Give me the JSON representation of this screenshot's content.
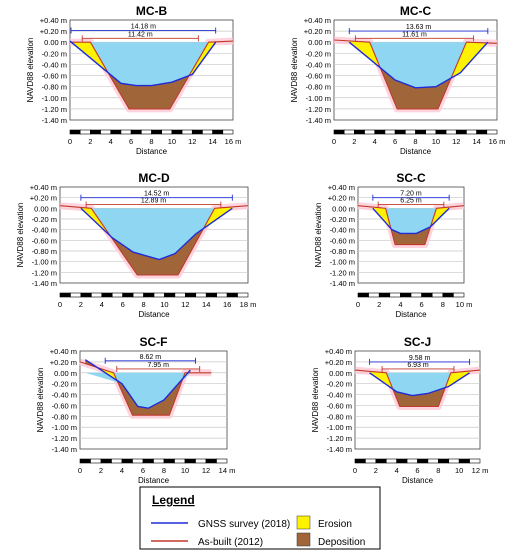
{
  "colors": {
    "gnss": "#1f2bd6",
    "asbuilt": "#c0392b",
    "water": "#8fd6f2",
    "erosion": "#fff200",
    "deposition": "#a0663a",
    "halo": "#ffc8d6",
    "grid": "#c8c8c8"
  },
  "legend": {
    "title": "Legend",
    "gnss": "GNSS survey (2018)",
    "asbuilt": "As-built (2012)",
    "erosion": "Erosion",
    "deposition": "Deposition"
  },
  "chart_data": [
    {
      "type": "line",
      "title": "MC-B",
      "ylabel": "NAVD88 elevation",
      "xlabel": "Distance",
      "xunit": "m",
      "yunit": "m",
      "xlim": [
        0,
        16
      ],
      "ylim": [
        -1.4,
        0.4
      ],
      "xticks": [
        0,
        2,
        4,
        6,
        8,
        10,
        12,
        14,
        16
      ],
      "yticks": [
        0.4,
        0.2,
        0.0,
        -0.2,
        -0.4,
        -0.6,
        -0.8,
        -1.0,
        -1.2,
        -1.4
      ],
      "ytick_labels": [
        "+0.40",
        "+0.20",
        "0.00",
        "-0.20",
        "-0.40",
        "-0.60",
        "-0.80",
        "-1.00",
        "-1.20",
        "-1.40"
      ],
      "top_width": {
        "label": "14.18 m",
        "from": 0.1,
        "to": 14.3,
        "y": 0.21
      },
      "bottom_width": {
        "label": "11.42 m",
        "from": 1.2,
        "to": 12.6,
        "y": 0.07
      },
      "series": [
        {
          "name": "GNSS survey (2018)",
          "x": [
            0,
            5,
            6.5,
            8,
            10,
            12,
            14.3
          ],
          "y": [
            0.02,
            -0.74,
            -0.78,
            -0.78,
            -0.72,
            -0.58,
            0.0
          ]
        },
        {
          "name": "As-built (2012)",
          "x": [
            0,
            2,
            5.8,
            9.8,
            13.6,
            16
          ],
          "y": [
            0.0,
            0.0,
            -1.2,
            -1.2,
            0.0,
            0.02
          ]
        }
      ]
    },
    {
      "type": "line",
      "title": "MC-C",
      "ylabel": "NAVD88 elevation",
      "xlabel": "Distance",
      "xunit": "m",
      "yunit": "m",
      "xlim": [
        0,
        16
      ],
      "ylim": [
        -1.4,
        0.4
      ],
      "xticks": [
        0,
        2,
        4,
        6,
        8,
        10,
        12,
        14,
        16
      ],
      "yticks": [
        0.4,
        0.2,
        0.0,
        -0.2,
        -0.4,
        -0.6,
        -0.8,
        -1.0,
        -1.2,
        -1.4
      ],
      "ytick_labels": [
        "+0.40",
        "+0.20",
        "0.00",
        "-0.20",
        "-0.40",
        "-0.60",
        "-0.80",
        "-1.00",
        "-1.20",
        "-1.40"
      ],
      "top_width": {
        "label": "13.63 m",
        "from": 1.5,
        "to": 15.1,
        "y": 0.2
      },
      "bottom_width": {
        "label": "11.61 m",
        "from": 2.1,
        "to": 13.7,
        "y": 0.07
      },
      "series": [
        {
          "name": "GNSS survey (2018)",
          "x": [
            1.5,
            6,
            8,
            10,
            12.4,
            15.1
          ],
          "y": [
            0.0,
            -0.68,
            -0.82,
            -0.8,
            -0.55,
            0.0
          ]
        },
        {
          "name": "As-built (2012)",
          "x": [
            0,
            3.5,
            6.2,
            10.2,
            13,
            16
          ],
          "y": [
            0.04,
            0.0,
            -1.2,
            -1.2,
            0.0,
            -0.02
          ]
        }
      ]
    },
    {
      "type": "line",
      "title": "MC-D",
      "ylabel": "NAVD88 elevation",
      "xlabel": "Distance",
      "xunit": "m",
      "yunit": "m",
      "xlim": [
        0,
        18
      ],
      "ylim": [
        -1.4,
        0.4
      ],
      "xticks": [
        0,
        2,
        4,
        6,
        8,
        10,
        12,
        14,
        16,
        18
      ],
      "yticks": [
        0.4,
        0.2,
        0.0,
        -0.2,
        -0.4,
        -0.6,
        -0.8,
        -1.0,
        -1.2,
        -1.4
      ],
      "ytick_labels": [
        "+0.40",
        "+0.20",
        "0.00",
        "-0.20",
        "-0.40",
        "-0.60",
        "-0.80",
        "-1.00",
        "-1.20",
        "-1.40"
      ],
      "top_width": {
        "label": "14.52 m",
        "from": 2.0,
        "to": 16.5,
        "y": 0.2
      },
      "bottom_width": {
        "label": "12.89 m",
        "from": 2.5,
        "to": 15.4,
        "y": 0.07
      },
      "series": [
        {
          "name": "GNSS survey (2018)",
          "x": [
            2.0,
            5,
            7,
            9.5,
            11,
            13,
            16.5
          ],
          "y": [
            0.0,
            -0.55,
            -0.82,
            -0.96,
            -0.85,
            -0.48,
            0.0
          ]
        },
        {
          "name": "As-built (2012)",
          "x": [
            0,
            3,
            7.4,
            11.3,
            14.8,
            18
          ],
          "y": [
            0.05,
            0.0,
            -1.25,
            -1.25,
            0.0,
            0.05
          ]
        }
      ]
    },
    {
      "type": "line",
      "title": "SC-C",
      "ylabel": "NAVD88 elevation",
      "xlabel": "Distance",
      "xunit": "m",
      "yunit": "m",
      "xlim": [
        0,
        10
      ],
      "ylim": [
        -1.4,
        0.4
      ],
      "xticks": [
        0,
        2,
        4,
        6,
        8,
        10
      ],
      "yticks": [
        0.4,
        0.2,
        0.0,
        -0.2,
        -0.4,
        -0.6,
        -0.8,
        -1.0,
        -1.2,
        -1.4
      ],
      "ytick_labels": [
        "+0.40",
        "+0.20",
        "0.00",
        "-0.20",
        "-0.40",
        "-0.60",
        "-0.80",
        "-1.00",
        "-1.20",
        "-1.40"
      ],
      "top_width": {
        "label": "7.20 m",
        "from": 1.4,
        "to": 8.6,
        "y": 0.2
      },
      "bottom_width": {
        "label": "6.25 m",
        "from": 1.9,
        "to": 8.1,
        "y": 0.07
      },
      "series": [
        {
          "name": "GNSS survey (2018)",
          "x": [
            1.4,
            3.2,
            4.0,
            5.5,
            6.8,
            8.6
          ],
          "y": [
            0.0,
            -0.4,
            -0.47,
            -0.47,
            -0.35,
            0.0
          ]
        },
        {
          "name": "As-built (2012)",
          "x": [
            0,
            2.6,
            3.5,
            6.3,
            7.4,
            10
          ],
          "y": [
            0.05,
            0.0,
            -0.68,
            -0.68,
            0.0,
            0.05
          ]
        }
      ]
    },
    {
      "type": "line",
      "title": "SC-F",
      "ylabel": "NAVD88 elevation",
      "xlabel": "Distance",
      "xunit": "m",
      "yunit": "m",
      "xlim": [
        0,
        14
      ],
      "ylim": [
        -1.4,
        0.4
      ],
      "xticks": [
        0,
        2,
        4,
        6,
        8,
        10,
        12,
        14
      ],
      "yticks": [
        0.4,
        0.2,
        0.0,
        -0.2,
        -0.4,
        -0.6,
        -0.8,
        -1.0,
        -1.2,
        -1.4
      ],
      "ytick_labels": [
        "+0.40",
        "+0.20",
        "0.00",
        "-0.20",
        "-0.40",
        "-0.60",
        "-0.80",
        "-1.00",
        "-1.20",
        "-1.40"
      ],
      "top_width": {
        "label": "8.62 m",
        "from": 2.4,
        "to": 11.0,
        "y": 0.22
      },
      "bottom_width": {
        "label": "7.95 m",
        "from": 3.5,
        "to": 11.4,
        "y": 0.07
      },
      "series": [
        {
          "name": "GNSS survey (2018)",
          "x": [
            0.5,
            4.0,
            5.5,
            6.5,
            8,
            10.5
          ],
          "y": [
            0.24,
            -0.2,
            -0.62,
            -0.65,
            -0.5,
            0.05
          ]
        },
        {
          "name": "As-built (2012)",
          "x": [
            0,
            3.2,
            5.0,
            8.5,
            10.0,
            12.5
          ],
          "y": [
            0.2,
            0.0,
            -0.78,
            -0.78,
            0.0,
            0.0
          ]
        }
      ]
    },
    {
      "type": "line",
      "title": "SC-J",
      "ylabel": "NAVD88 elevation",
      "xlabel": "Distance",
      "xunit": "m",
      "yunit": "m",
      "xlim": [
        0,
        12
      ],
      "ylim": [
        -1.4,
        0.4
      ],
      "xticks": [
        0,
        2,
        4,
        6,
        8,
        10,
        12
      ],
      "yticks": [
        0.4,
        0.2,
        0.0,
        -0.2,
        -0.4,
        -0.6,
        -0.8,
        -1.0,
        -1.2,
        -1.4
      ],
      "ytick_labels": [
        "+0.40",
        "+0.20",
        "0.00",
        "-0.20",
        "-0.40",
        "-0.60",
        "-0.80",
        "-1.00",
        "-1.20",
        "-1.40"
      ],
      "top_width": {
        "label": "9.58 m",
        "from": 1.4,
        "to": 11.0,
        "y": 0.2
      },
      "bottom_width": {
        "label": "6.93 m",
        "from": 2.6,
        "to": 9.5,
        "y": 0.07
      },
      "series": [
        {
          "name": "GNSS survey (2018)",
          "x": [
            1.4,
            4.0,
            5.5,
            7.0,
            9.0,
            11.0
          ],
          "y": [
            0.0,
            -0.35,
            -0.42,
            -0.38,
            -0.25,
            0.0
          ]
        },
        {
          "name": "As-built (2012)",
          "x": [
            0,
            3.0,
            4.3,
            8.0,
            9.2,
            12
          ],
          "y": [
            0.05,
            0.0,
            -0.62,
            -0.62,
            0.0,
            0.05
          ]
        }
      ]
    }
  ]
}
